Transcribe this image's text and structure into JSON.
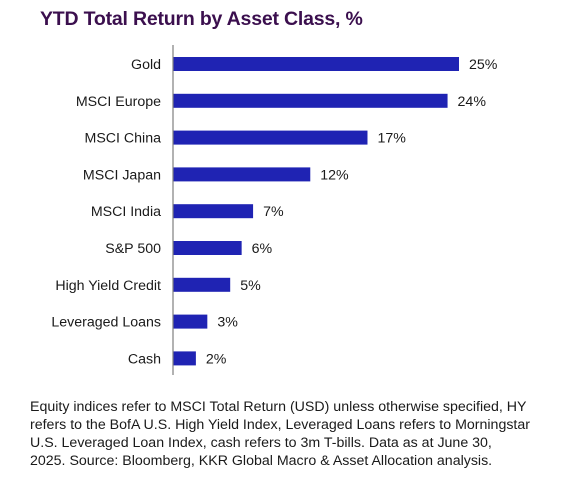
{
  "title": "YTD Total Return by Asset Class, %",
  "footnote": "Equity indices refer to MSCI Total Return (USD) unless otherwise specified, HY refers to the BofA U.S. High Yield Index, Leveraged Loans refers to Morningstar U.S. Leveraged Loan Index, cash refers to 3m T-bills. Data as at June 30, 2025. Source: Bloomberg, KKR Global Macro & Asset Allocation analysis.",
  "colors": {
    "bar": "#1f23b3",
    "title": "#3b0f4e",
    "axis": "#7f7f7f",
    "text": "#1a1a1a"
  },
  "chart_data": {
    "type": "bar",
    "orientation": "horizontal",
    "title": "YTD Total Return by Asset Class, %",
    "xlabel": "",
    "ylabel": "",
    "categories": [
      "Gold",
      "MSCI Europe",
      "MSCI China",
      "MSCI Japan",
      "MSCI India",
      "S&P 500",
      "High Yield Credit",
      "Leveraged Loans",
      "Cash"
    ],
    "values": [
      25,
      24,
      17,
      12,
      7,
      6,
      5,
      3,
      2
    ],
    "data_labels": [
      "25%",
      "24%",
      "17%",
      "12%",
      "7%",
      "6%",
      "5%",
      "3%",
      "2%"
    ],
    "xlim": [
      0,
      26
    ],
    "grid": false,
    "legend": "none"
  }
}
